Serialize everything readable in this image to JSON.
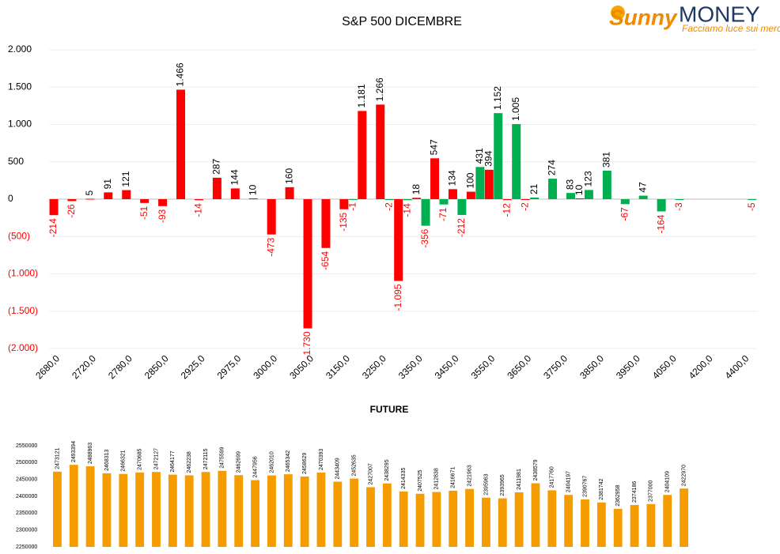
{
  "brand": {
    "name_1": "Sunny",
    "name_2": "MONEY",
    "tagline": "Facciamo luce sui mercati"
  },
  "chart_data": [
    {
      "type": "bar",
      "title": "S&P 500 DICEMBRE",
      "categories": [
        "2680,0",
        null,
        "2720,0",
        null,
        "2780,0",
        null,
        "2850,0",
        null,
        "2925,0",
        null,
        "2975,0",
        null,
        "3000,0",
        null,
        "3050,0",
        null,
        "3150,0",
        null,
        "3250,0",
        null,
        "3350,0",
        null,
        "3450,0",
        null,
        "3550,0",
        null,
        "3650,0",
        null,
        "3750,0",
        null,
        "3850,0",
        null,
        "3950,0",
        null,
        "4050,0",
        null,
        "4200,0",
        null,
        "4400,0"
      ],
      "series": [
        {
          "color": "#ff0000",
          "values": [
            -214,
            -26,
            5,
            91,
            121,
            -51,
            -93,
            1466,
            -14,
            287,
            144,
            10,
            -473,
            160,
            -1730,
            -654,
            -135,
            1181,
            1266,
            -1095,
            18,
            547,
            134,
            100,
            394,
            -12,
            -2,
            null,
            null,
            10,
            null,
            null,
            null,
            null,
            null,
            null,
            null,
            null,
            null
          ],
          "value_labels": [
            "-214",
            "-26",
            "5",
            "91",
            "121",
            "-51",
            "-93",
            "1.466",
            "-14",
            "287",
            "144",
            "10",
            "-473",
            "160",
            "-1.730",
            "-654",
            "-135",
            "1.181",
            "1.266",
            "-1.095",
            "18",
            "547",
            "134",
            "100",
            "394",
            "-12",
            "-2",
            null,
            null,
            "10",
            null,
            null,
            null,
            null,
            null,
            null,
            null,
            null,
            null
          ]
        },
        {
          "color": "#00b050",
          "values": [
            null,
            null,
            null,
            null,
            null,
            null,
            null,
            null,
            null,
            null,
            null,
            null,
            null,
            null,
            null,
            null,
            -1,
            null,
            -2,
            -14,
            -356,
            -71,
            -212,
            431,
            1152,
            1005,
            21,
            274,
            83,
            123,
            381,
            -67,
            47,
            -164,
            -3,
            null,
            null,
            null,
            -5
          ],
          "value_labels": [
            null,
            null,
            null,
            null,
            null,
            null,
            null,
            null,
            null,
            null,
            null,
            null,
            null,
            null,
            null,
            null,
            "-1",
            null,
            "-2",
            "-14",
            "-356",
            "-71",
            "-212",
            "431",
            "1.152",
            "1.005",
            "21",
            "274",
            "83",
            "123",
            "381",
            "-67",
            "47",
            "-164",
            "-3",
            null,
            null,
            null,
            "-5"
          ]
        }
      ],
      "ylim": [
        -2000,
        2000
      ],
      "yticks": [
        {
          "value": 2000,
          "label": "2.000"
        },
        {
          "value": 1500,
          "label": "1.500"
        },
        {
          "value": 1000,
          "label": "1.000"
        },
        500,
        0,
        {
          "value": -500,
          "label": "(500)"
        },
        {
          "value": -1000,
          "label": "(1.000)"
        },
        {
          "value": -1500,
          "label": "(1.500)"
        },
        {
          "value": -2000,
          "label": "(2.000)"
        }
      ],
      "grid": true
    },
    {
      "type": "bar",
      "title": "FUTURE",
      "color": "#f59c00",
      "values": [
        2473121,
        2493394,
        2488963,
        2468313,
        2466321,
        2470685,
        2472127,
        2464177,
        2462238,
        2472115,
        2475599,
        2462699,
        2447956,
        2462010,
        2465342,
        2458629,
        2470393,
        2443409,
        2452635,
        2427007,
        2438295,
        2414335,
        2407525,
        2412838,
        2416671,
        2421963,
        2395963,
        2393965,
        2411981,
        2438579,
        2417760,
        2404197,
        2390767,
        2381742,
        2362958,
        2374186,
        2377000,
        2404109,
        2422970
      ],
      "ylim": [
        2250000,
        2550000
      ],
      "yticks": [
        2550000,
        2500000,
        2450000,
        2400000,
        2350000,
        2300000,
        2250000
      ],
      "grid": false
    }
  ]
}
